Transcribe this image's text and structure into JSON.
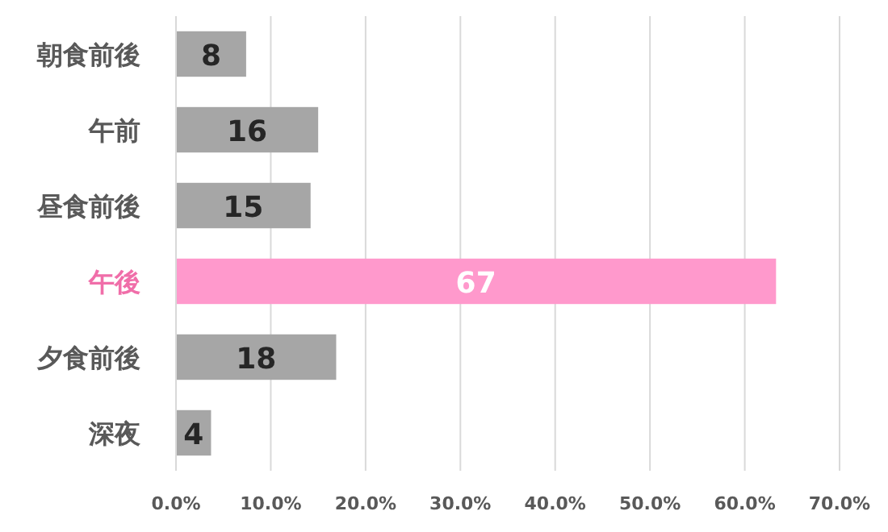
{
  "chart_data": {
    "type": "bar",
    "orientation": "horizontal",
    "categories": [
      "朝食前後",
      "午前",
      "昼食前後",
      "午後",
      "夕食前後",
      "深夜"
    ],
    "values": [
      7.4,
      15.0,
      14.2,
      63.3,
      16.9,
      3.7
    ],
    "annotations": [
      "8",
      "16",
      "15",
      "67",
      "18",
      "4"
    ],
    "colors": [
      "#a6a6a6",
      "#a6a6a6",
      "#a6a6a6",
      "#ff99cc",
      "#a6a6a6",
      "#a6a6a6"
    ],
    "xlim": [
      0,
      70
    ],
    "xticks": [
      {
        "value": 0,
        "label": "0.0%"
      },
      {
        "value": 10,
        "label": "10.0%"
      },
      {
        "value": 20,
        "label": "20.0%"
      },
      {
        "value": 30,
        "label": "30.0%"
      },
      {
        "value": 40,
        "label": "40.0%"
      },
      {
        "value": 50,
        "label": "50.0%"
      },
      {
        "value": 60,
        "label": "60.0%"
      },
      {
        "value": 70,
        "label": "70.0%"
      }
    ],
    "grid": "x"
  }
}
